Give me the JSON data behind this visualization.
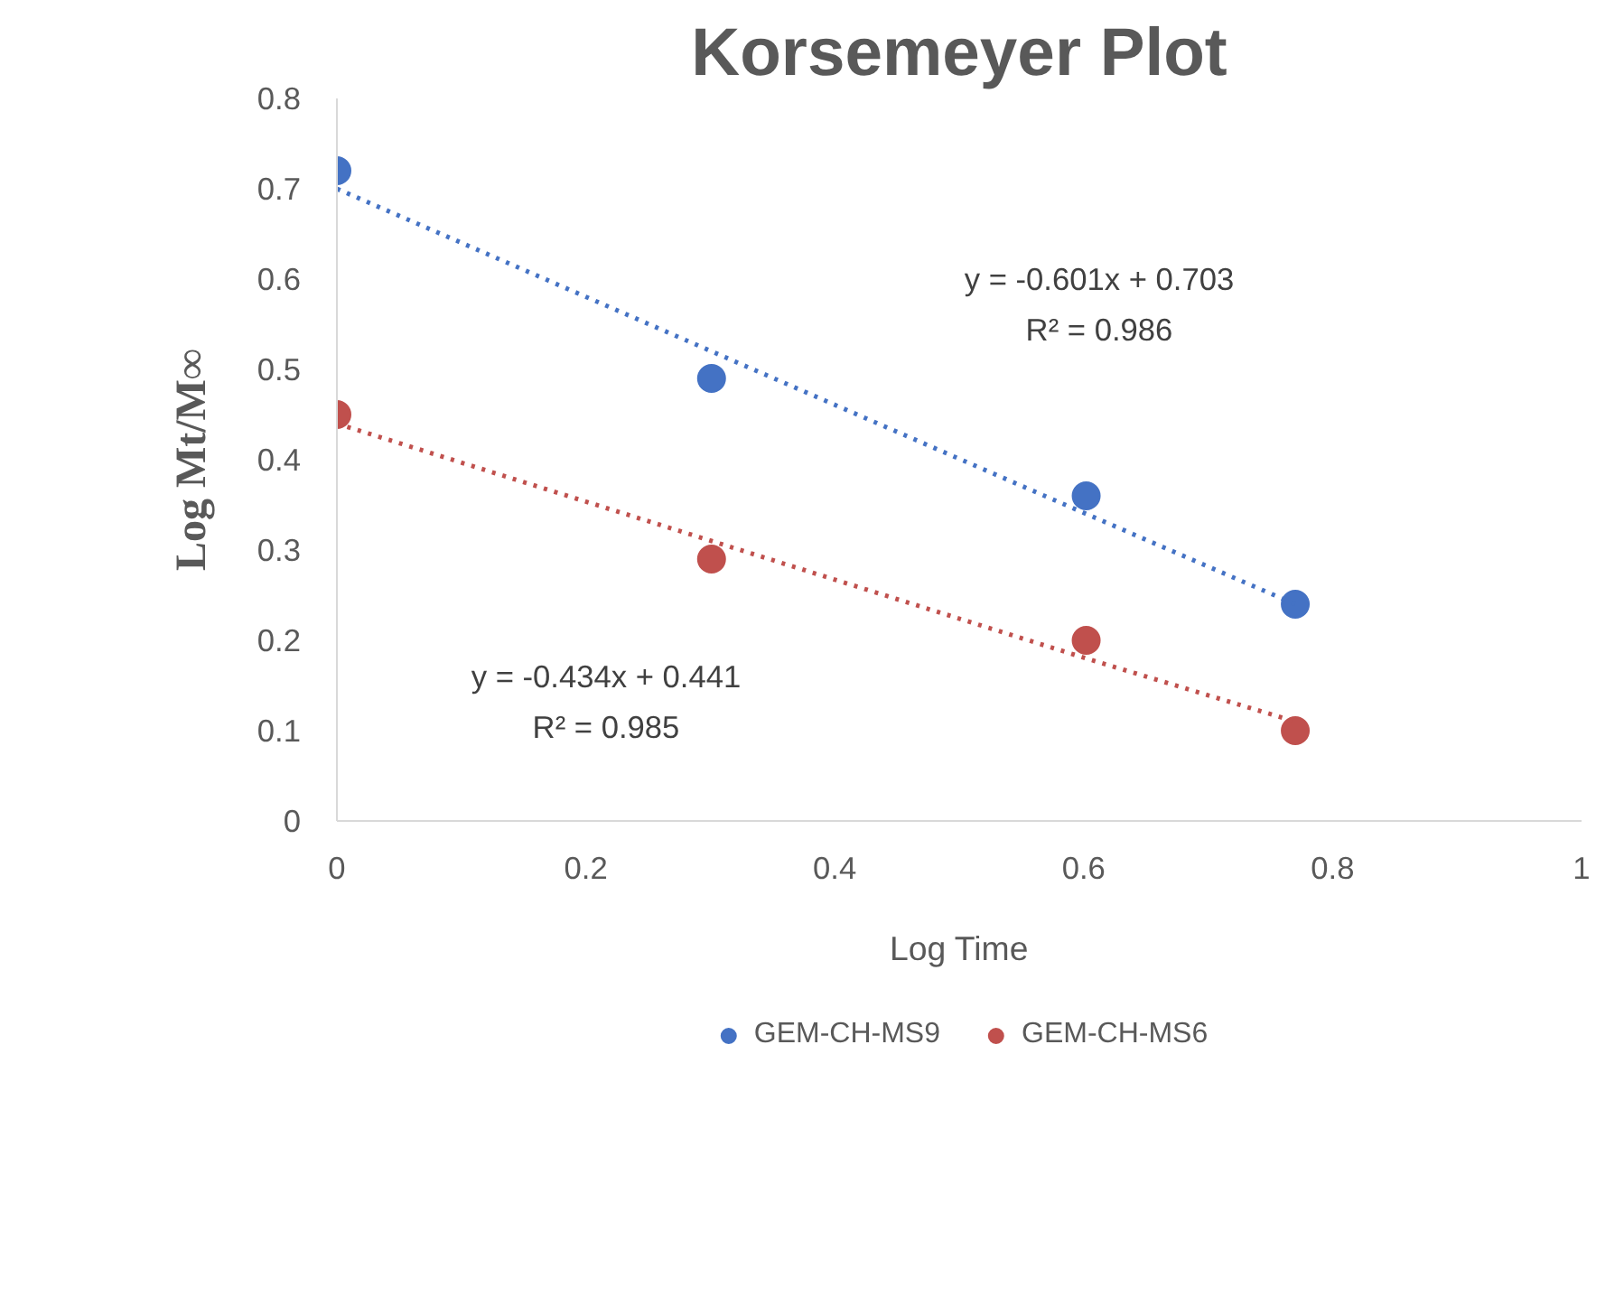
{
  "chart_data": {
    "type": "scatter",
    "title": "Korsemeyer Plot",
    "xlabel": "Log Time",
    "ylabel": "Log Mt/M∞",
    "xlim": [
      0,
      1
    ],
    "ylim": [
      0,
      0.8
    ],
    "xticks": [
      0,
      0.2,
      0.4,
      0.6,
      0.8,
      1
    ],
    "yticks": [
      0,
      0.1,
      0.2,
      0.3,
      0.4,
      0.5,
      0.6,
      0.7,
      0.8
    ],
    "grid": false,
    "legend": "bottom",
    "marker": "circle",
    "x": [
      0,
      0.301,
      0.602,
      0.77
    ],
    "series": [
      {
        "name": "GEM-CH-MS9",
        "color": "#4472c4",
        "values": [
          0.72,
          0.49,
          0.36,
          0.24
        ]
      },
      {
        "name": "GEM-CH-MS6",
        "color": "#c0504d",
        "values": [
          0.45,
          0.29,
          0.2,
          0.1
        ]
      },
      {
        "type": "line",
        "color": "#4472c4",
        "line_style": "dotted",
        "marker": "none",
        "values": [
          0.7,
          0.52,
          0.34,
          0.24
        ]
      },
      {
        "type": "line",
        "color": "#c0504d",
        "line_style": "dotted",
        "marker": "none",
        "values": [
          0.44,
          0.31,
          0.18,
          0.11
        ]
      }
    ],
    "annotations": [
      "y = -0.601x + 0.703",
      "R² = 0.986",
      "y = -0.434x + 0.441",
      "R² = 0.985"
    ]
  }
}
